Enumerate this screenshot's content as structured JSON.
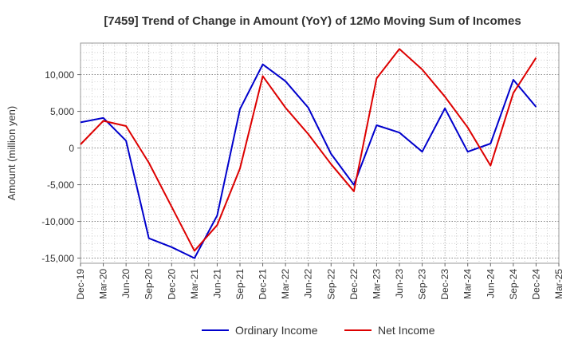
{
  "chart_data": {
    "type": "line",
    "title": "[7459]  Trend of Change in Amount (YoY) of 12Mo Moving Sum of Incomes",
    "xlabel": "",
    "ylabel": "Amount (million yen)",
    "ylim": [
      -15700,
      14300
    ],
    "yticks": [
      10000,
      5000,
      0,
      -5000,
      -10000,
      -15000
    ],
    "ytick_labels": [
      "10,000",
      "5,000",
      "0",
      "-5,000",
      "-10,000",
      "-15,000"
    ],
    "categories": [
      "Dec-19",
      "Mar-20",
      "Jun-20",
      "Sep-20",
      "Dec-20",
      "Mar-21",
      "Jun-21",
      "Sep-21",
      "Dec-21",
      "Mar-22",
      "Jun-22",
      "Sep-22",
      "Dec-22",
      "Mar-23",
      "Jun-23",
      "Sep-23",
      "Dec-23",
      "Mar-24",
      "Jun-24",
      "Sep-24",
      "Dec-24",
      "Mar-25"
    ],
    "grid": true,
    "legend_position": "bottom",
    "series": [
      {
        "name": "Ordinary Income",
        "color": "#0000cc",
        "values": [
          3500,
          4100,
          1000,
          -12300,
          -13500,
          -15000,
          -9200,
          5300,
          11400,
          9100,
          5500,
          -800,
          -5000,
          3100,
          2100,
          -500,
          5400,
          -500,
          600,
          9300,
          5600,
          null
        ]
      },
      {
        "name": "Net Income",
        "color": "#dd0000",
        "values": [
          500,
          3700,
          3000,
          -2000,
          -8000,
          -14000,
          -10500,
          -2800,
          9800,
          5500,
          1900,
          -2200,
          -5900,
          9500,
          13500,
          10700,
          7000,
          2800,
          -2400,
          7500,
          12300,
          null
        ]
      }
    ]
  }
}
